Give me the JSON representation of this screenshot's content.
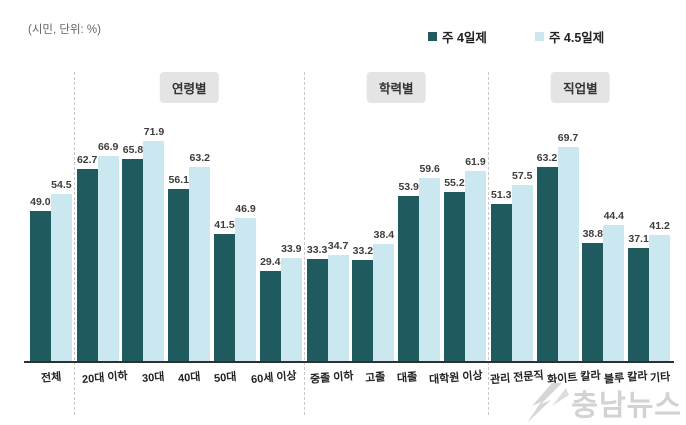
{
  "unit_note": "(시민, 단위: %)",
  "legend": [
    {
      "label": "주 4일제",
      "color": "#1e5a5e"
    },
    {
      "label": "주 4.5일제",
      "color": "#cbe7f0"
    }
  ],
  "watermark": {
    "text": "충남뉴스"
  },
  "chart_data": {
    "type": "bar",
    "title": "",
    "xlabel": "",
    "ylabel": "%",
    "ylim": [
      0,
      80
    ],
    "grid": false,
    "legend_position": "top",
    "series_names": [
      "주 4일제",
      "주 4.5일제"
    ],
    "groups": [
      {
        "label": "",
        "categories": [
          "전체"
        ],
        "week4": [
          49.0
        ],
        "week45": [
          54.5
        ]
      },
      {
        "label": "연령별",
        "categories": [
          "20대 이하",
          "30대",
          "40대",
          "50대",
          "60세 이상"
        ],
        "week4": [
          62.7,
          65.8,
          56.1,
          41.5,
          29.4
        ],
        "week45": [
          66.9,
          71.9,
          63.2,
          46.9,
          33.9
        ]
      },
      {
        "label": "학력별",
        "categories": [
          "중졸 이하",
          "고졸",
          "대졸",
          "대학원 이상"
        ],
        "week4": [
          33.3,
          33.2,
          53.9,
          55.2
        ],
        "week45": [
          34.7,
          38.4,
          59.6,
          61.9
        ]
      },
      {
        "label": "직업별",
        "categories": [
          "관리 전문직",
          "화이트 칼라",
          "블루 칼라",
          "기타"
        ],
        "week4": [
          51.3,
          63.2,
          38.8,
          37.1
        ],
        "week45": [
          57.5,
          69.7,
          44.4,
          41.2
        ]
      }
    ]
  }
}
